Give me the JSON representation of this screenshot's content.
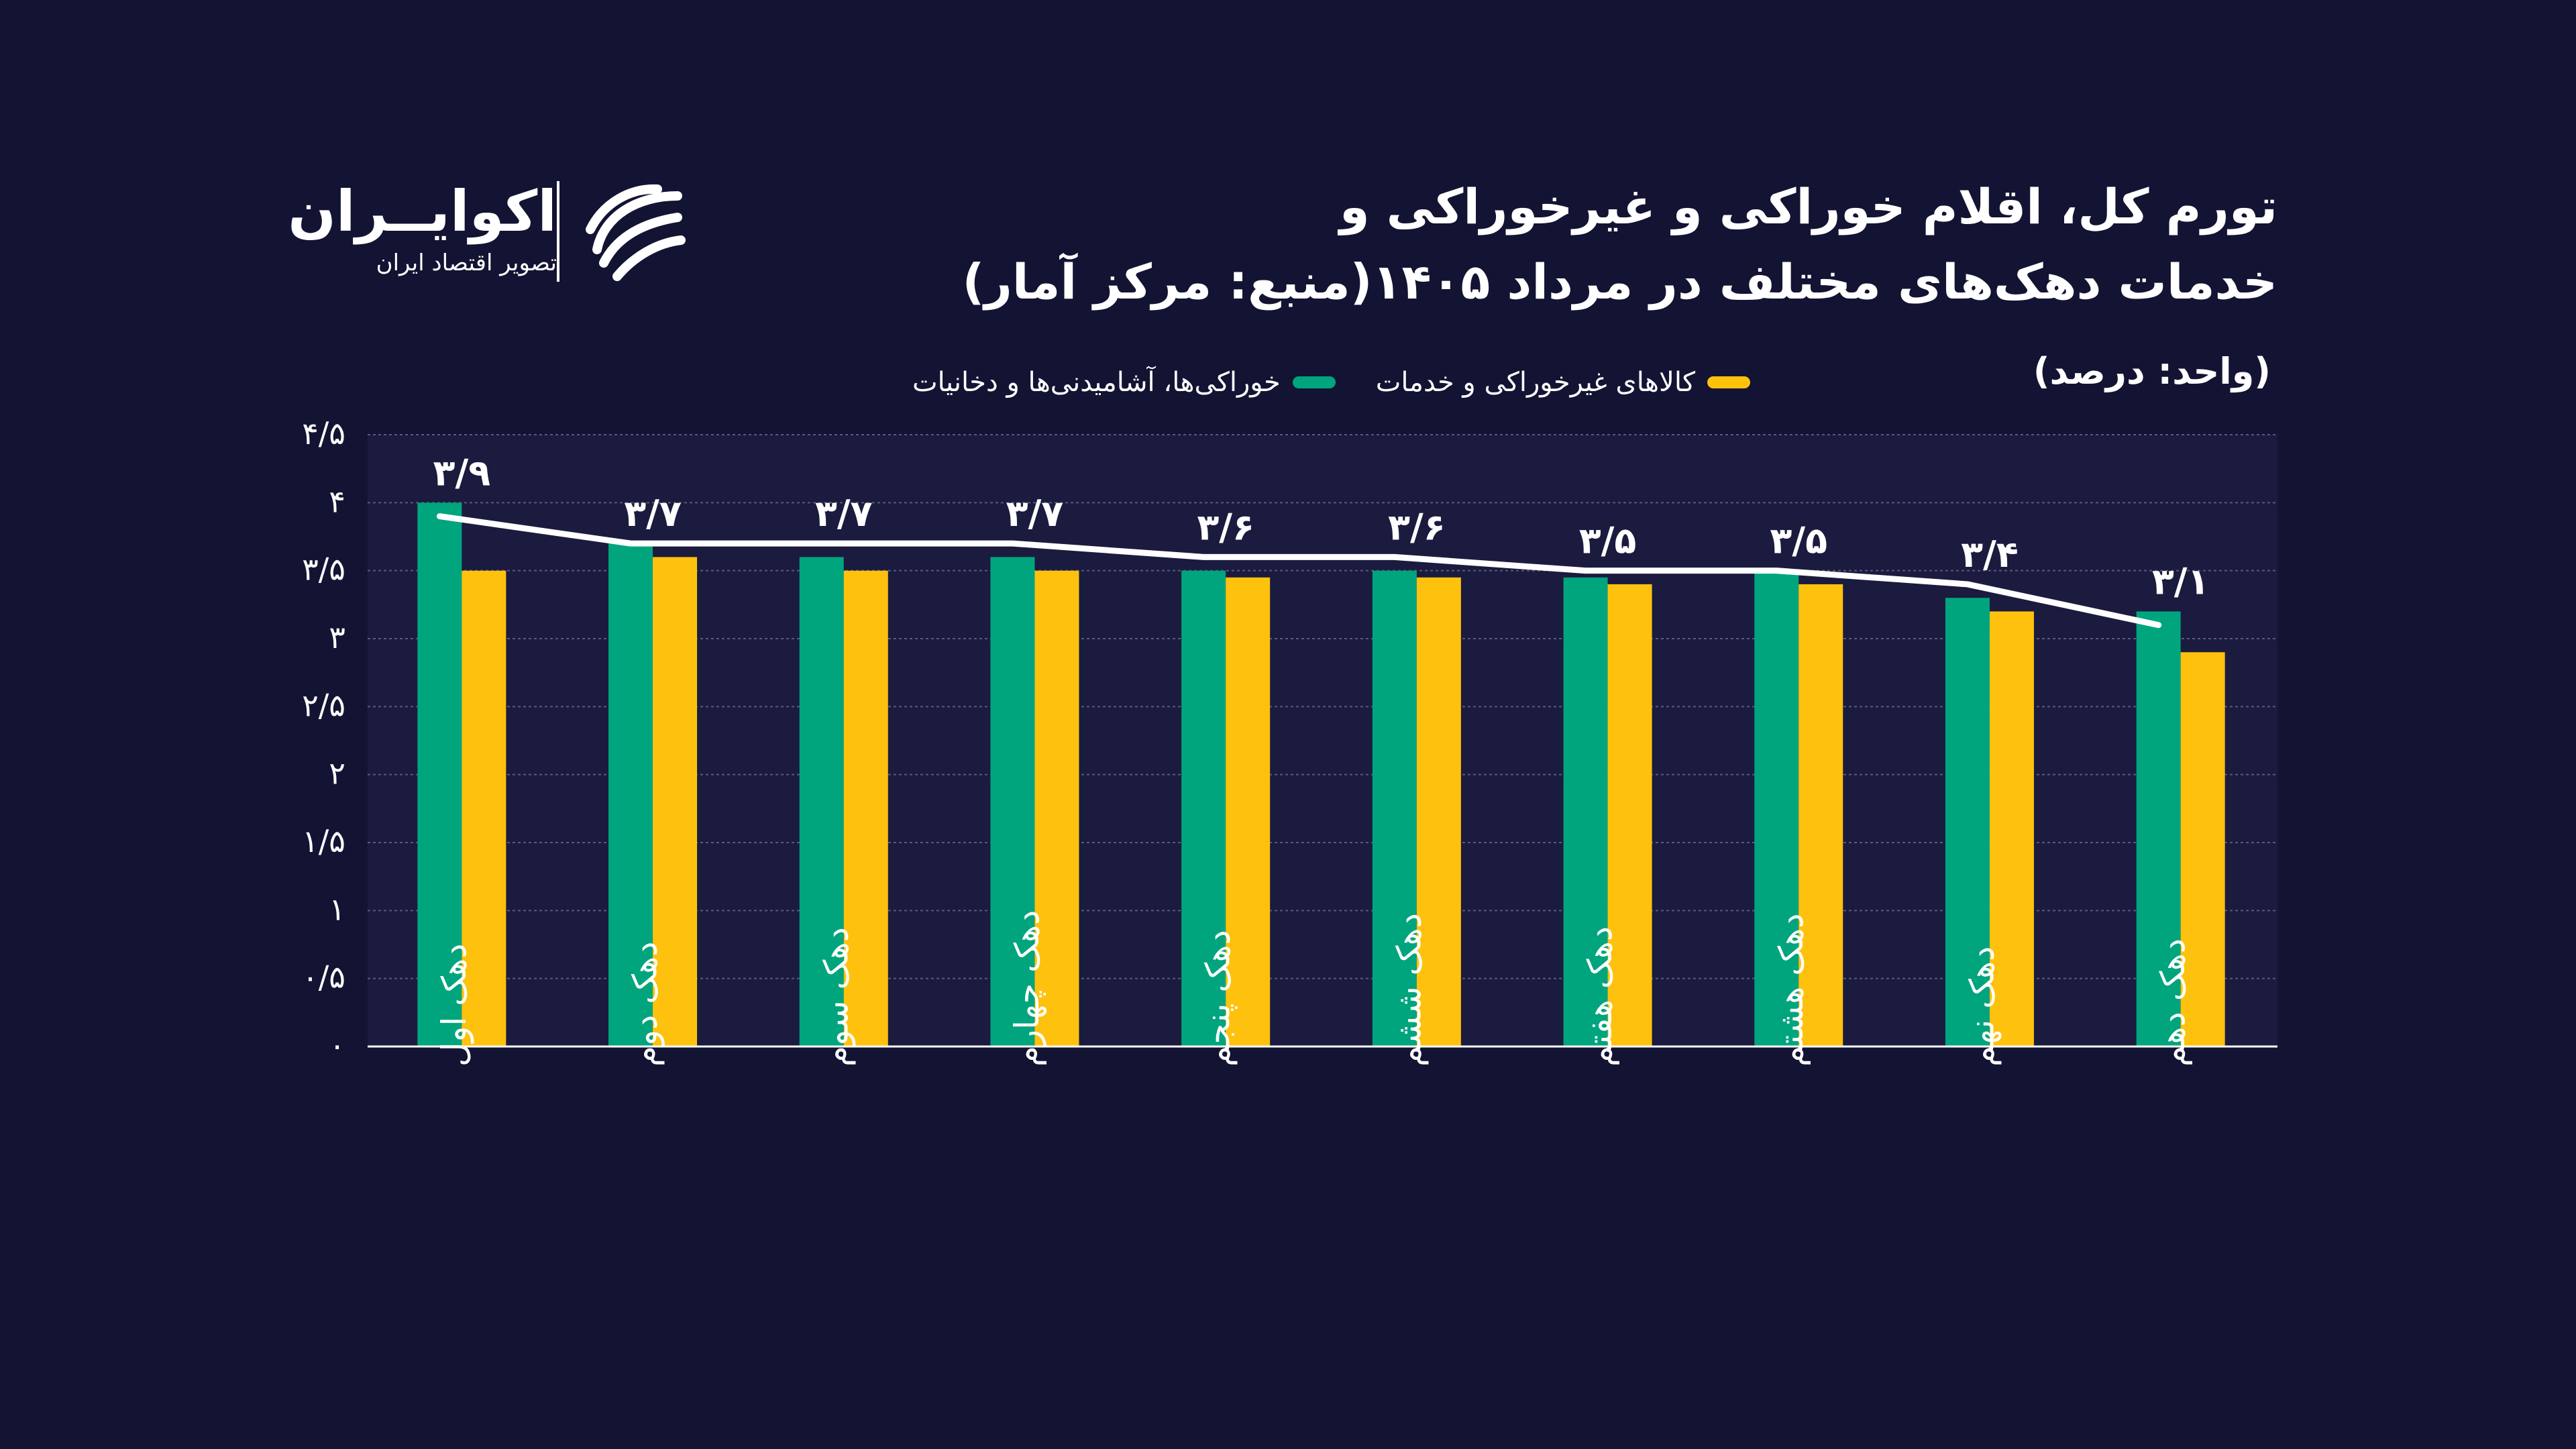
{
  "header": {
    "title_line1": "تورم کل، اقلام خوراکی و غیرخوراکی و",
    "title_line2": "خدمات دهک‌های مختلف در مرداد ۱۴۰۵(منبع: مرکز آمار)",
    "unit": "(واحد: درصد)"
  },
  "logo": {
    "name": "اکوایــران",
    "subtitle": "تصویر اقتصاد ایران",
    "icon": "ecoiran-logo-icon"
  },
  "colors": {
    "background": "#131333",
    "plot_background": "#1b1b3f",
    "food": "#00a57d",
    "nonfood": "#fec20e",
    "total_line": "#ffffff"
  },
  "chart_data": {
    "type": "bar",
    "categories": [
      "دهک اول",
      "دهک دوم",
      "دهک سوم",
      "دهک چهارم",
      "دهک پنجم",
      "دهک ششم",
      "دهک هفتم",
      "دهک هشتم",
      "دهک نهم",
      "دهک دهم"
    ],
    "series": [
      {
        "name": "خوراکی‌ها، آشامیدنی‌ها و دخانیات",
        "type": "bar",
        "color": "#00a57d",
        "values": [
          4.0,
          3.7,
          3.6,
          3.6,
          3.5,
          3.5,
          3.45,
          3.5,
          3.3,
          3.2
        ]
      },
      {
        "name": "کالاهای غیرخوراکی و خدمات",
        "type": "bar",
        "color": "#fec20e",
        "values": [
          3.5,
          3.6,
          3.5,
          3.5,
          3.45,
          3.45,
          3.4,
          3.4,
          3.2,
          2.9
        ]
      },
      {
        "name": "",
        "type": "line",
        "color": "#ffffff",
        "values": [
          3.9,
          3.7,
          3.7,
          3.7,
          3.6,
          3.6,
          3.5,
          3.5,
          3.4,
          3.1
        ]
      }
    ],
    "data_labels": [
      "۳/۹",
      "۳/۷",
      "۳/۷",
      "۳/۷",
      "۳/۶",
      "۳/۶",
      "۳/۵",
      "۳/۵",
      "۳/۴",
      "۳/۱"
    ],
    "y_ticks": [
      0,
      0.5,
      1,
      1.5,
      2,
      2.5,
      3,
      3.5,
      4,
      4.5
    ],
    "y_tick_labels": [
      "۰",
      "۰/۵",
      "۱",
      "۱/۵",
      "۲",
      "۲/۵",
      "۳",
      "۳/۵",
      "۴",
      "۴/۵"
    ],
    "ylim": [
      0,
      4.5
    ],
    "grid": true,
    "legend_position": "top"
  }
}
